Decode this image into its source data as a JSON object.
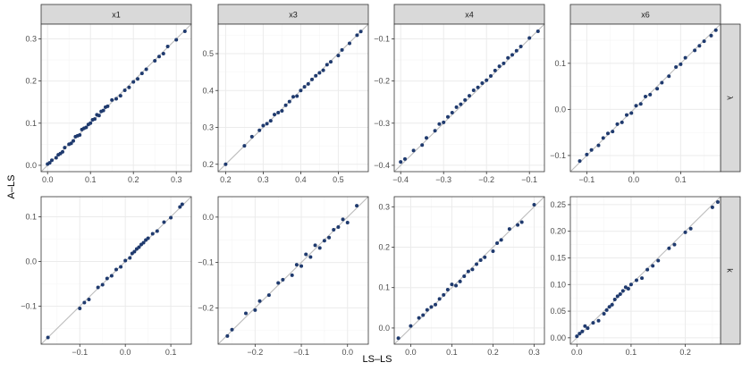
{
  "figure": {
    "xlabel": "LS–LS",
    "ylabel": "A–LS",
    "col_strips": [
      "x1",
      "x3",
      "x4",
      "x6"
    ],
    "row_strips": [
      "λ",
      "k"
    ]
  },
  "colors": {
    "point": "#1f3a6e",
    "identity_line": "#bdbdbd",
    "panel_border": "#333333",
    "strip_fill": "#d9d9d9",
    "grid_major": "#ebebeb",
    "grid_minor": "#f5f5f5"
  },
  "chart_data": [
    {
      "type": "scatter",
      "col": "x1",
      "row": "λ",
      "xlim": [
        -0.015,
        0.335
      ],
      "ylim": [
        -0.015,
        0.335
      ],
      "xticks": [
        0.0,
        0.1,
        0.2,
        0.3
      ],
      "xtick_labels": [
        "0.0",
        "0.1",
        "0.2",
        "0.3"
      ],
      "yticks": [
        0.0,
        0.1,
        0.2,
        0.3
      ],
      "ytick_labels": [
        "0.0",
        "0.1",
        "0.2",
        "0.3"
      ],
      "identity_line": true,
      "x": [
        0.0,
        0.005,
        0.01,
        0.02,
        0.025,
        0.03,
        0.035,
        0.04,
        0.05,
        0.055,
        0.06,
        0.065,
        0.07,
        0.075,
        0.08,
        0.085,
        0.09,
        0.095,
        0.1,
        0.105,
        0.11,
        0.115,
        0.12,
        0.125,
        0.13,
        0.135,
        0.14,
        0.15,
        0.16,
        0.17,
        0.18,
        0.19,
        0.2,
        0.21,
        0.22,
        0.23,
        0.25,
        0.26,
        0.27,
        0.28,
        0.3,
        0.32
      ],
      "y": [
        0.003,
        0.006,
        0.012,
        0.018,
        0.025,
        0.028,
        0.032,
        0.042,
        0.05,
        0.052,
        0.058,
        0.068,
        0.07,
        0.072,
        0.085,
        0.088,
        0.09,
        0.097,
        0.1,
        0.108,
        0.11,
        0.12,
        0.118,
        0.128,
        0.13,
        0.138,
        0.14,
        0.155,
        0.158,
        0.165,
        0.178,
        0.185,
        0.198,
        0.205,
        0.218,
        0.228,
        0.248,
        0.258,
        0.265,
        0.282,
        0.298,
        0.318
      ]
    },
    {
      "type": "scatter",
      "col": "x3",
      "row": "λ",
      "xlim": [
        0.18,
        0.58
      ],
      "ylim": [
        0.18,
        0.58
      ],
      "xticks": [
        0.2,
        0.3,
        0.4,
        0.5
      ],
      "xtick_labels": [
        "0.2",
        "0.3",
        "0.4",
        "0.5"
      ],
      "yticks": [
        0.2,
        0.3,
        0.4,
        0.5
      ],
      "ytick_labels": [
        "0.2",
        "0.3",
        "0.4",
        "0.5"
      ],
      "identity_line": true,
      "x": [
        0.2,
        0.25,
        0.27,
        0.29,
        0.3,
        0.31,
        0.32,
        0.33,
        0.34,
        0.35,
        0.36,
        0.37,
        0.38,
        0.39,
        0.4,
        0.41,
        0.42,
        0.43,
        0.44,
        0.45,
        0.46,
        0.47,
        0.48,
        0.5,
        0.51,
        0.53,
        0.55,
        0.56
      ],
      "y": [
        0.2,
        0.25,
        0.275,
        0.292,
        0.305,
        0.31,
        0.318,
        0.335,
        0.34,
        0.345,
        0.36,
        0.37,
        0.383,
        0.385,
        0.4,
        0.41,
        0.418,
        0.43,
        0.44,
        0.448,
        0.455,
        0.47,
        0.478,
        0.495,
        0.51,
        0.528,
        0.55,
        0.56
      ]
    },
    {
      "type": "scatter",
      "col": "x4",
      "row": "λ",
      "xlim": [
        -0.415,
        -0.065
      ],
      "ylim": [
        -0.415,
        -0.065
      ],
      "xticks": [
        -0.4,
        -0.3,
        -0.2,
        -0.1
      ],
      "xtick_labels": [
        "−0.4",
        "−0.3",
        "−0.2",
        "−0.1"
      ],
      "yticks": [
        -0.4,
        -0.3,
        -0.2,
        -0.1
      ],
      "ytick_labels": [
        "−0.4",
        "−0.3",
        "−0.2",
        "−0.1"
      ],
      "identity_line": true,
      "x": [
        -0.4,
        -0.39,
        -0.37,
        -0.35,
        -0.34,
        -0.32,
        -0.31,
        -0.3,
        -0.29,
        -0.28,
        -0.27,
        -0.26,
        -0.25,
        -0.24,
        -0.23,
        -0.22,
        -0.21,
        -0.2,
        -0.19,
        -0.18,
        -0.17,
        -0.16,
        -0.15,
        -0.14,
        -0.13,
        -0.12,
        -0.1,
        -0.08
      ],
      "y": [
        -0.392,
        -0.385,
        -0.365,
        -0.352,
        -0.335,
        -0.318,
        -0.302,
        -0.298,
        -0.285,
        -0.275,
        -0.262,
        -0.255,
        -0.245,
        -0.235,
        -0.222,
        -0.215,
        -0.205,
        -0.198,
        -0.188,
        -0.175,
        -0.165,
        -0.158,
        -0.145,
        -0.138,
        -0.128,
        -0.118,
        -0.098,
        -0.082
      ]
    },
    {
      "type": "scatter",
      "col": "x6",
      "row": "λ",
      "xlim": [
        -0.135,
        0.185
      ],
      "ylim": [
        -0.135,
        0.185
      ],
      "xticks": [
        -0.1,
        0.0,
        0.1
      ],
      "xtick_labels": [
        "−0.1",
        "0.0",
        "0.1"
      ],
      "yticks": [
        -0.1,
        0.0,
        0.1
      ],
      "ytick_labels": [
        "−0.1",
        "0.0",
        "0.1"
      ],
      "identity_line": true,
      "x": [
        -0.115,
        -0.1,
        -0.09,
        -0.075,
        -0.065,
        -0.055,
        -0.045,
        -0.035,
        -0.025,
        -0.015,
        -0.005,
        0.005,
        0.015,
        0.025,
        0.035,
        0.05,
        0.06,
        0.075,
        0.09,
        0.1,
        0.11,
        0.13,
        0.14,
        0.15,
        0.165,
        0.175
      ],
      "y": [
        -0.112,
        -0.098,
        -0.088,
        -0.078,
        -0.062,
        -0.052,
        -0.048,
        -0.032,
        -0.028,
        -0.012,
        -0.008,
        0.008,
        0.012,
        0.028,
        0.032,
        0.045,
        0.058,
        0.072,
        0.092,
        0.098,
        0.112,
        0.128,
        0.138,
        0.148,
        0.16,
        0.172
      ]
    },
    {
      "type": "scatter",
      "col": "x1",
      "row": "k",
      "xlim": [
        -0.185,
        0.145
      ],
      "ylim": [
        -0.185,
        0.145
      ],
      "xticks": [
        -0.1,
        0.0,
        0.1
      ],
      "xtick_labels": [
        "−0.1",
        "0.0",
        "0.1"
      ],
      "yticks": [
        -0.1,
        0.0,
        0.1
      ],
      "ytick_labels": [
        "−0.1",
        "0.0",
        "0.1"
      ],
      "identity_line": true,
      "x": [
        -0.17,
        -0.1,
        -0.09,
        -0.08,
        -0.06,
        -0.05,
        -0.04,
        -0.03,
        -0.02,
        -0.01,
        0.0,
        0.01,
        0.015,
        0.02,
        0.025,
        0.03,
        0.035,
        0.04,
        0.045,
        0.05,
        0.06,
        0.07,
        0.085,
        0.1,
        0.12,
        0.125
      ],
      "y": [
        -0.17,
        -0.105,
        -0.092,
        -0.085,
        -0.058,
        -0.052,
        -0.038,
        -0.032,
        -0.018,
        -0.012,
        0.002,
        0.008,
        0.018,
        0.022,
        0.028,
        0.032,
        0.038,
        0.042,
        0.048,
        0.052,
        0.062,
        0.068,
        0.088,
        0.098,
        0.122,
        0.128
      ]
    },
    {
      "type": "scatter",
      "col": "x3",
      "row": "k",
      "xlim": [
        -0.28,
        0.045
      ],
      "ylim": [
        -0.28,
        0.045
      ],
      "xticks": [
        -0.2,
        -0.1,
        0.0
      ],
      "xtick_labels": [
        "−0.2",
        "−0.1",
        "0.0"
      ],
      "yticks": [
        -0.2,
        -0.1,
        0.0
      ],
      "ytick_labels": [
        "−0.2",
        "−0.1",
        "0.0"
      ],
      "identity_line": true,
      "x": [
        -0.26,
        -0.25,
        -0.22,
        -0.2,
        -0.19,
        -0.17,
        -0.15,
        -0.14,
        -0.12,
        -0.11,
        -0.1,
        -0.09,
        -0.08,
        -0.07,
        -0.06,
        -0.05,
        -0.04,
        -0.03,
        -0.02,
        -0.01,
        0.0,
        0.02
      ],
      "y": [
        -0.262,
        -0.248,
        -0.212,
        -0.205,
        -0.185,
        -0.172,
        -0.145,
        -0.138,
        -0.128,
        -0.105,
        -0.108,
        -0.082,
        -0.088,
        -0.062,
        -0.068,
        -0.052,
        -0.045,
        -0.028,
        -0.022,
        -0.005,
        -0.012,
        0.025
      ]
    },
    {
      "type": "scatter",
      "col": "x4",
      "row": "k",
      "xlim": [
        -0.04,
        0.325
      ],
      "ylim": [
        -0.04,
        0.325
      ],
      "xticks": [
        0.0,
        0.1,
        0.2,
        0.3
      ],
      "xtick_labels": [
        "0.0",
        "0.1",
        "0.2",
        "0.3"
      ],
      "yticks": [
        0.0,
        0.1,
        0.2,
        0.3
      ],
      "ytick_labels": [
        "0.0",
        "0.1",
        "0.2",
        "0.3"
      ],
      "identity_line": true,
      "x": [
        -0.03,
        0.0,
        0.02,
        0.03,
        0.04,
        0.05,
        0.06,
        0.07,
        0.08,
        0.09,
        0.1,
        0.11,
        0.12,
        0.13,
        0.14,
        0.15,
        0.16,
        0.17,
        0.18,
        0.2,
        0.21,
        0.22,
        0.24,
        0.26,
        0.27,
        0.3
      ],
      "y": [
        -0.025,
        0.005,
        0.025,
        0.032,
        0.045,
        0.052,
        0.058,
        0.072,
        0.082,
        0.095,
        0.108,
        0.105,
        0.115,
        0.128,
        0.14,
        0.145,
        0.158,
        0.168,
        0.175,
        0.19,
        0.21,
        0.218,
        0.245,
        0.255,
        0.262,
        0.305
      ]
    },
    {
      "type": "scatter",
      "col": "x6",
      "row": "k",
      "xlim": [
        -0.012,
        0.265
      ],
      "ylim": [
        -0.012,
        0.265
      ],
      "xticks": [
        0.0,
        0.1,
        0.2
      ],
      "xtick_labels": [
        "0.0",
        "0.1",
        "0.2"
      ],
      "yticks": [
        0.0,
        0.05,
        0.1,
        0.15,
        0.2,
        0.25
      ],
      "ytick_labels": [
        "0.00",
        "0.05",
        "0.10",
        "0.15",
        "0.20",
        "0.25"
      ],
      "identity_line": true,
      "x": [
        0.0,
        0.005,
        0.01,
        0.015,
        0.02,
        0.03,
        0.04,
        0.05,
        0.055,
        0.06,
        0.065,
        0.07,
        0.075,
        0.08,
        0.085,
        0.09,
        0.095,
        0.1,
        0.11,
        0.12,
        0.13,
        0.14,
        0.15,
        0.17,
        0.18,
        0.2,
        0.21,
        0.25,
        0.26
      ],
      "y": [
        0.003,
        0.008,
        0.012,
        0.022,
        0.018,
        0.028,
        0.032,
        0.045,
        0.052,
        0.058,
        0.062,
        0.072,
        0.078,
        0.082,
        0.088,
        0.095,
        0.092,
        0.1,
        0.108,
        0.112,
        0.128,
        0.135,
        0.145,
        0.168,
        0.175,
        0.198,
        0.205,
        0.245,
        0.255
      ]
    }
  ]
}
